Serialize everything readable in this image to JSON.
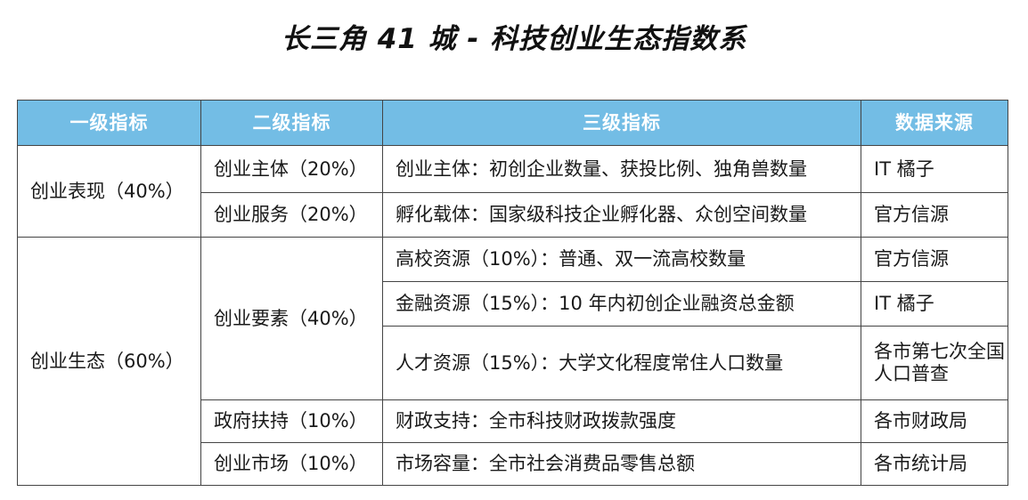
{
  "title": "长三角 41 城 - 科技创业生态指数系",
  "table": {
    "headers": [
      "一级指标",
      "二级指标",
      "三级指标",
      "数据来源"
    ],
    "level1": [
      {
        "label": "创业表现（40%）"
      },
      {
        "label": "创业生态（60%）"
      }
    ],
    "level2": [
      {
        "label": "创业主体（20%）"
      },
      {
        "label": "创业服务（20%）"
      },
      {
        "label": "创业要素（40%）"
      },
      {
        "label": "政府扶持（10%）"
      },
      {
        "label": "创业市场（10%）"
      }
    ],
    "rows": [
      {
        "level3": "创业主体：初创企业数量、获投比例、独角兽数量",
        "source": "IT 橘子"
      },
      {
        "level3": "孵化载体：国家级科技企业孵化器、众创空间数量",
        "source": "官方信源"
      },
      {
        "level3": "高校资源（10%）：普通、双一流高校数量",
        "source": "官方信源"
      },
      {
        "level3": "金融资源（15%）：10 年内初创企业融资总金额",
        "source": "IT 橘子"
      },
      {
        "level3": "人才资源（15%）：大学文化程度常住人口数量",
        "source": "各市第七次全国人口普查"
      },
      {
        "level3": "财政支持：全市科技财政拨款强度",
        "source": "各市财政局"
      },
      {
        "level3": "市场容量：全市社会消费品零售总额",
        "source": "各市统计局"
      }
    ]
  }
}
